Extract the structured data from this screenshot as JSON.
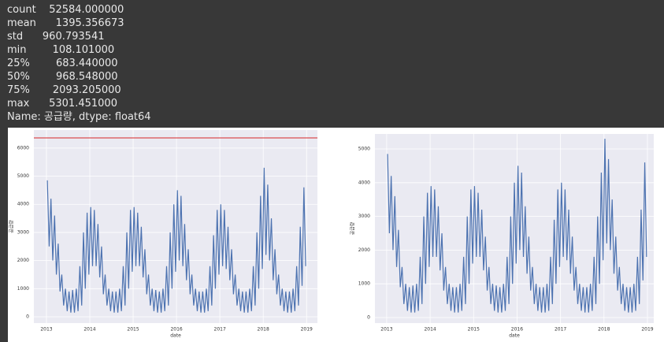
{
  "describe": {
    "lines": [
      "count    52584.000000",
      "mean      1395.356673",
      "std      960.793541",
      "min        108.101000",
      "25%        683.440000",
      "50%        968.548000",
      "75%       2093.205000",
      "max      5301.451000",
      "Name: 공급량, dtype: float64"
    ]
  },
  "chart_data": [
    {
      "type": "line",
      "ylabel": "공급량",
      "xlabel": "date",
      "hline": 6360,
      "hline_color": "#d62728",
      "xlim": [
        2012.71,
        2019.25
      ],
      "ylim": [
        -224,
        6640
      ],
      "xticks": [
        2013,
        2014,
        2015,
        2016,
        2017,
        2018,
        2019
      ],
      "yticks": [
        0,
        1000,
        2000,
        3000,
        4000,
        5000,
        6000
      ],
      "grid": true,
      "x": [
        2013.021,
        2013.063,
        2013.104,
        2013.146,
        2013.188,
        2013.229,
        2013.271,
        2013.313,
        2013.354,
        2013.396,
        2013.438,
        2013.479,
        2013.521,
        2013.563,
        2013.604,
        2013.646,
        2013.688,
        2013.729,
        2013.771,
        2013.813,
        2013.854,
        2013.896,
        2013.938,
        2013.979,
        2014.021,
        2014.063,
        2014.104,
        2014.146,
        2014.188,
        2014.229,
        2014.271,
        2014.313,
        2014.354,
        2014.396,
        2014.438,
        2014.479,
        2014.521,
        2014.563,
        2014.604,
        2014.646,
        2014.688,
        2014.729,
        2014.771,
        2014.813,
        2014.854,
        2014.896,
        2014.938,
        2014.979,
        2015.021,
        2015.063,
        2015.104,
        2015.146,
        2015.188,
        2015.229,
        2015.271,
        2015.313,
        2015.354,
        2015.396,
        2015.438,
        2015.479,
        2015.521,
        2015.563,
        2015.604,
        2015.646,
        2015.688,
        2015.729,
        2015.771,
        2015.813,
        2015.854,
        2015.896,
        2015.938,
        2015.979,
        2016.021,
        2016.063,
        2016.104,
        2016.146,
        2016.188,
        2016.229,
        2016.271,
        2016.313,
        2016.354,
        2016.396,
        2016.438,
        2016.479,
        2016.521,
        2016.563,
        2016.604,
        2016.646,
        2016.688,
        2016.729,
        2016.771,
        2016.813,
        2016.854,
        2016.896,
        2016.938,
        2016.979,
        2017.021,
        2017.063,
        2017.104,
        2017.146,
        2017.188,
        2017.229,
        2017.271,
        2017.313,
        2017.354,
        2017.396,
        2017.438,
        2017.479,
        2017.521,
        2017.563,
        2017.604,
        2017.646,
        2017.688,
        2017.729,
        2017.771,
        2017.813,
        2017.854,
        2017.896,
        2017.938,
        2017.979,
        2018.021,
        2018.063,
        2018.104,
        2018.146,
        2018.188,
        2018.229,
        2018.271,
        2018.313,
        2018.354,
        2018.396,
        2018.438,
        2018.479,
        2018.521,
        2018.563,
        2018.604,
        2018.646,
        2018.688,
        2018.729,
        2018.771,
        2018.813,
        2018.854,
        2018.896,
        2018.938,
        2018.979
      ],
      "series": [
        {
          "color": "#4c72b0",
          "values": [
            4850,
            2500,
            4200,
            2000,
            3600,
            1500,
            2600,
            900,
            1500,
            400,
            1000,
            200,
            900,
            150,
            950,
            150,
            1000,
            200,
            1800,
            400,
            3000,
            1000,
            3700,
            1500,
            3900,
            1800,
            3800,
            1800,
            3300,
            1400,
            2500,
            800,
            1500,
            400,
            1000,
            200,
            900,
            150,
            900,
            150,
            1000,
            200,
            1800,
            400,
            3000,
            1000,
            3800,
            1600,
            3900,
            1800,
            3700,
            1800,
            3200,
            1400,
            2400,
            800,
            1500,
            400,
            1000,
            200,
            950,
            150,
            900,
            150,
            1000,
            200,
            1800,
            400,
            3000,
            1000,
            4000,
            1600,
            4500,
            2000,
            4300,
            1800,
            3300,
            1300,
            2400,
            800,
            1500,
            400,
            1000,
            200,
            900,
            150,
            900,
            150,
            1000,
            200,
            1800,
            400,
            2900,
            1000,
            3800,
            1500,
            4000,
            1800,
            3800,
            1700,
            3200,
            1300,
            2400,
            800,
            1500,
            400,
            1000,
            200,
            900,
            150,
            900,
            150,
            1000,
            200,
            1800,
            400,
            3000,
            1000,
            4300,
            1700,
            5300,
            2200,
            4700,
            2000,
            3500,
            1300,
            2400,
            800,
            1500,
            400,
            1000,
            200,
            900,
            150,
            900,
            150,
            1000,
            200,
            1800,
            400,
            3200,
            1100,
            4600,
            1800
          ]
        }
      ]
    },
    {
      "type": "line",
      "ylabel": "공급량",
      "xlabel": "date",
      "xlim": [
        2012.73,
        2019.145
      ],
      "ylim": [
        -164,
        5444
      ],
      "xticks": [
        2013,
        2014,
        2015,
        2016,
        2017,
        2018,
        2019
      ],
      "yticks": [
        0,
        1000,
        2000,
        3000,
        4000,
        5000
      ],
      "grid": true,
      "x": [
        2013.021,
        2013.063,
        2013.104,
        2013.146,
        2013.188,
        2013.229,
        2013.271,
        2013.313,
        2013.354,
        2013.396,
        2013.438,
        2013.479,
        2013.521,
        2013.563,
        2013.604,
        2013.646,
        2013.688,
        2013.729,
        2013.771,
        2013.813,
        2013.854,
        2013.896,
        2013.938,
        2013.979,
        2014.021,
        2014.063,
        2014.104,
        2014.146,
        2014.188,
        2014.229,
        2014.271,
        2014.313,
        2014.354,
        2014.396,
        2014.438,
        2014.479,
        2014.521,
        2014.563,
        2014.604,
        2014.646,
        2014.688,
        2014.729,
        2014.771,
        2014.813,
        2014.854,
        2014.896,
        2014.938,
        2014.979,
        2015.021,
        2015.063,
        2015.104,
        2015.146,
        2015.188,
        2015.229,
        2015.271,
        2015.313,
        2015.354,
        2015.396,
        2015.438,
        2015.479,
        2015.521,
        2015.563,
        2015.604,
        2015.646,
        2015.688,
        2015.729,
        2015.771,
        2015.813,
        2015.854,
        2015.896,
        2015.938,
        2015.979,
        2016.021,
        2016.063,
        2016.104,
        2016.146,
        2016.188,
        2016.229,
        2016.271,
        2016.313,
        2016.354,
        2016.396,
        2016.438,
        2016.479,
        2016.521,
        2016.563,
        2016.604,
        2016.646,
        2016.688,
        2016.729,
        2016.771,
        2016.813,
        2016.854,
        2016.896,
        2016.938,
        2016.979,
        2017.021,
        2017.063,
        2017.104,
        2017.146,
        2017.188,
        2017.229,
        2017.271,
        2017.313,
        2017.354,
        2017.396,
        2017.438,
        2017.479,
        2017.521,
        2017.563,
        2017.604,
        2017.646,
        2017.688,
        2017.729,
        2017.771,
        2017.813,
        2017.854,
        2017.896,
        2017.938,
        2017.979,
        2018.021,
        2018.063,
        2018.104,
        2018.146,
        2018.188,
        2018.229,
        2018.271,
        2018.313,
        2018.354,
        2018.396,
        2018.438,
        2018.479,
        2018.521,
        2018.563,
        2018.604,
        2018.646,
        2018.688,
        2018.729,
        2018.771,
        2018.813,
        2018.854,
        2018.896,
        2018.938,
        2018.979
      ],
      "series": [
        {
          "color": "#4c72b0",
          "values": [
            4850,
            2500,
            4200,
            2000,
            3600,
            1500,
            2600,
            900,
            1500,
            400,
            1000,
            200,
            900,
            150,
            950,
            150,
            1000,
            200,
            1800,
            400,
            3000,
            1000,
            3700,
            1500,
            3900,
            1800,
            3800,
            1800,
            3300,
            1400,
            2500,
            800,
            1500,
            400,
            1000,
            200,
            900,
            150,
            900,
            150,
            1000,
            200,
            1800,
            400,
            3000,
            1000,
            3800,
            1600,
            3900,
            1800,
            3700,
            1800,
            3200,
            1400,
            2400,
            800,
            1500,
            400,
            1000,
            200,
            950,
            150,
            900,
            150,
            1000,
            200,
            1800,
            400,
            3000,
            1000,
            4000,
            1600,
            4500,
            2000,
            4300,
            1800,
            3300,
            1300,
            2400,
            800,
            1500,
            400,
            1000,
            200,
            900,
            150,
            900,
            150,
            1000,
            200,
            1800,
            400,
            2900,
            1000,
            3800,
            1500,
            4000,
            1800,
            3800,
            1700,
            3200,
            1300,
            2400,
            800,
            1500,
            400,
            1000,
            200,
            900,
            150,
            900,
            150,
            1000,
            200,
            1800,
            400,
            3000,
            1000,
            4300,
            1700,
            5300,
            2200,
            4700,
            2000,
            3500,
            1300,
            2400,
            800,
            1500,
            400,
            1000,
            200,
            900,
            150,
            900,
            150,
            1000,
            200,
            1800,
            400,
            3200,
            1100,
            4600,
            1800
          ]
        }
      ]
    }
  ]
}
